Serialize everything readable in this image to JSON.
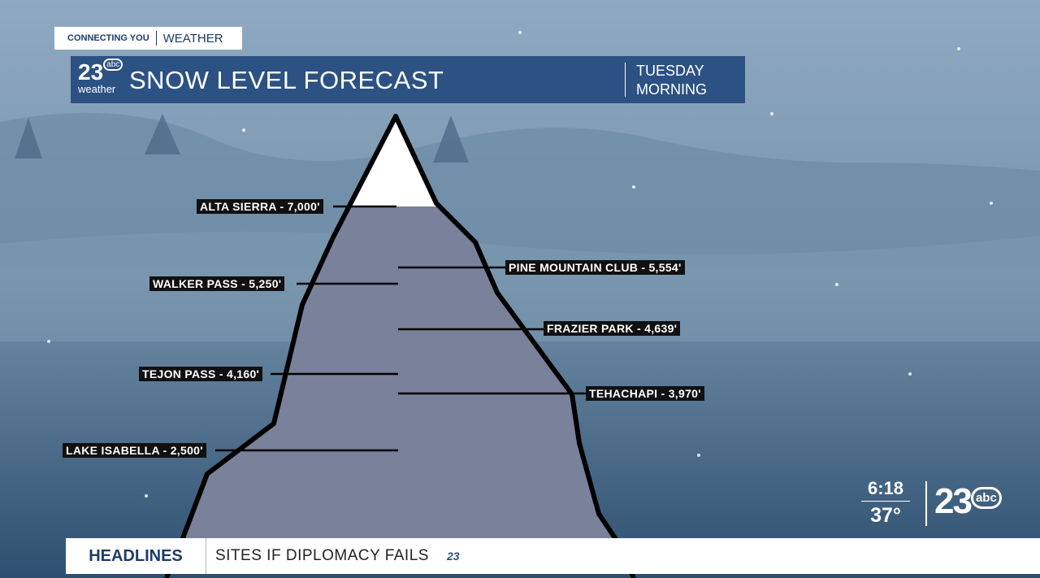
{
  "banner": {
    "tag_left": "CONNECTING YOU",
    "tag_right": "WEATHER"
  },
  "header": {
    "logo_num": "23",
    "logo_net": "abc",
    "logo_sub": "weather",
    "title": "SNOW LEVEL FORECAST",
    "time_line1": "TUESDAY",
    "time_line2": "MORNING"
  },
  "labels": [
    "ALTA SIERRA - 7,000'",
    "PINE MOUNTAIN CLUB - 5,554'",
    "WALKER PASS - 5,250'",
    "FRAZIER PARK - 4,639'",
    "TEJON PASS - 4,160'",
    "TEHACHAPI - 3,970'",
    "LAKE ISABELLA - 2,500'"
  ],
  "clock": {
    "time": "6:18",
    "temp": "37°",
    "logo_num": "23",
    "logo_net": "abc"
  },
  "ticker": {
    "label": "HEADLINES",
    "text": "SITES IF DIPLOMACY FAILS",
    "logo": "23"
  }
}
